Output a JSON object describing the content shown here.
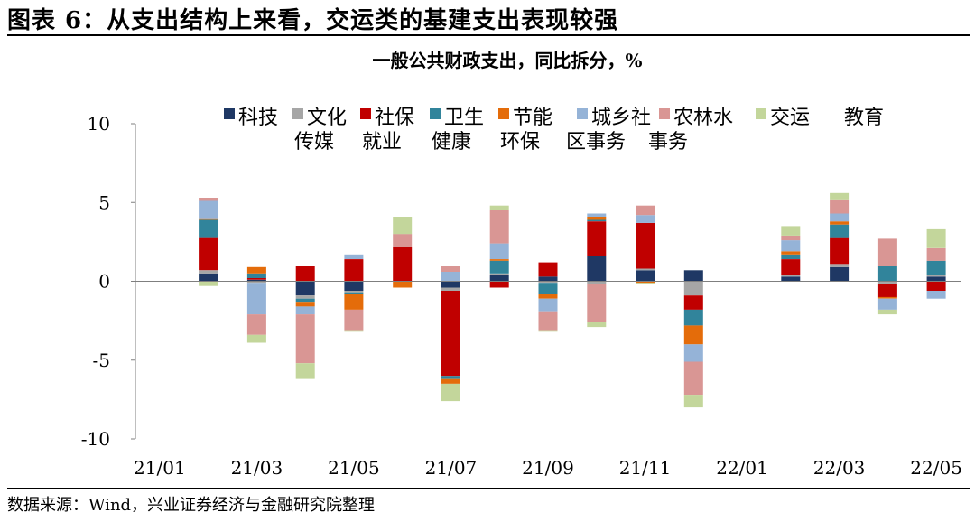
{
  "figure": {
    "caption": "图表 6：从支出结构上来看，交运类的基建支出表现较强",
    "source": "数据来源：Wind，兴业证券经济与金融研究院整理"
  },
  "chart_data": {
    "type": "stacked-bar",
    "title": "一般公共财政支出，同比拆分，%",
    "xlabel": "",
    "ylabel": "",
    "ylim": [
      -10,
      10
    ],
    "yticks": [
      10,
      5,
      0,
      -5,
      -10
    ],
    "grid": false,
    "legend_position": "top",
    "categories": [
      "21/01",
      "21/02",
      "21/03",
      "21/04",
      "21/05",
      "21/06",
      "21/07",
      "21/08",
      "21/09",
      "21/10",
      "21/11",
      "21/12",
      "22/01",
      "22/02",
      "22/03",
      "22/04",
      "22/05"
    ],
    "x_tick_labels": [
      "21/01",
      "21/03",
      "21/05",
      "21/07",
      "21/09",
      "21/11",
      "22/01",
      "22/03",
      "22/05"
    ],
    "series": [
      {
        "name": "科技",
        "color": "#1f3864",
        "values": [
          0,
          0.5,
          0.1,
          -0.9,
          -0.6,
          0,
          -0.4,
          0.4,
          0.3,
          1.6,
          0.7,
          0.7,
          0,
          0.3,
          0.9,
          0,
          0.3
        ]
      },
      {
        "name": "文化传媒",
        "color": "#a6a6a6",
        "values": [
          0,
          0.2,
          -0.1,
          -0.2,
          -0.1,
          0,
          -0.2,
          0.1,
          -0.1,
          -0.2,
          0.1,
          -0.9,
          0,
          0.1,
          0.2,
          -0.2,
          0.1
        ]
      },
      {
        "name": "社保就业",
        "color": "#c00000",
        "values": [
          0,
          2.1,
          0.1,
          1.0,
          1.4,
          2.2,
          -5.4,
          -0.4,
          0.9,
          2.2,
          2.9,
          -0.9,
          0,
          1.0,
          1.7,
          -0.8,
          -0.6
        ]
      },
      {
        "name": "卫生健康",
        "color": "#31849b",
        "values": [
          0,
          1.1,
          0.3,
          -0.2,
          -0.1,
          0,
          -0.2,
          0.8,
          -0.7,
          0.1,
          0,
          -1.0,
          0,
          0.3,
          0.8,
          1.0,
          0.9
        ]
      },
      {
        "name": "节能环保",
        "color": "#e46c0a",
        "values": [
          0,
          0.1,
          0.4,
          -0.3,
          -1.0,
          -0.4,
          -0.3,
          0.1,
          -0.3,
          0.2,
          -0.1,
          -1.2,
          0,
          0.2,
          0.2,
          -0.1,
          0
        ]
      },
      {
        "name": "城乡社区事务",
        "color": "#95b3d7",
        "values": [
          0,
          1.1,
          -2.0,
          -0.5,
          0.3,
          0,
          0.6,
          1.0,
          -0.8,
          0.2,
          0.5,
          -1.1,
          0,
          0.7,
          0.5,
          -0.7,
          -0.5
        ]
      },
      {
        "name": "农林水事务",
        "color": "#d99694",
        "values": [
          0,
          0.2,
          -1.3,
          -3.1,
          -1.3,
          0.8,
          0.4,
          2.1,
          -1.2,
          -2.4,
          0.6,
          -2.1,
          0,
          0.3,
          0.9,
          1.7,
          0.8
        ]
      },
      {
        "name": "交运",
        "color": "#c3d69b",
        "values": [
          0,
          -0.3,
          -0.5,
          -1.0,
          -0.1,
          1.1,
          -1.1,
          0.3,
          -0.1,
          -0.3,
          -0.1,
          -0.8,
          0,
          0.6,
          0.4,
          -0.3,
          1.2
        ]
      }
    ]
  }
}
